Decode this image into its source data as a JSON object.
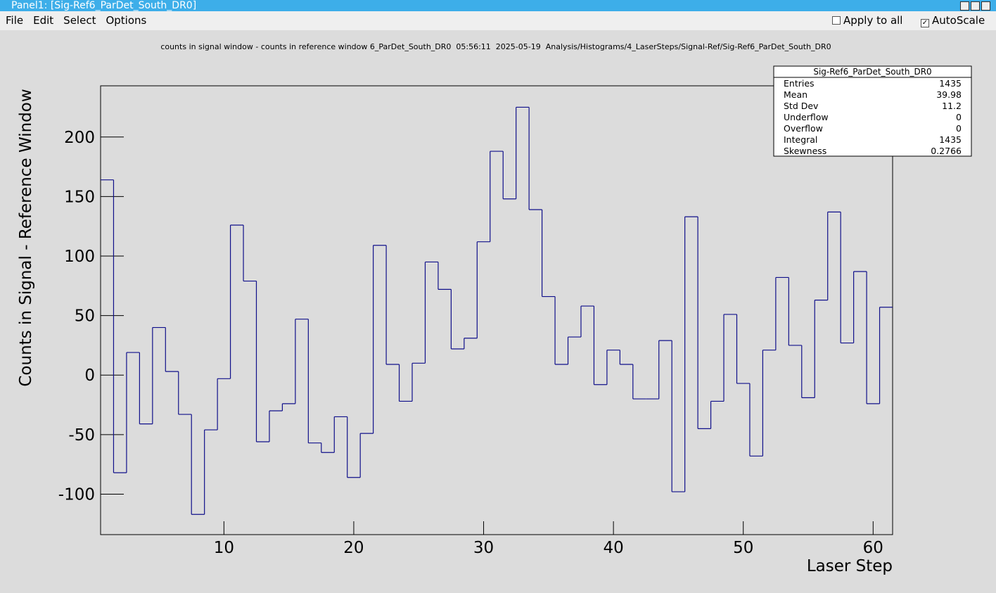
{
  "window": {
    "title": "Panel1: [Sig-Ref6_ParDet_South_DR0]"
  },
  "menu": [
    "File",
    "Edit",
    "Select",
    "Options"
  ],
  "options": [
    {
      "label": "Apply to all",
      "checked": false
    },
    {
      "label": "AutoScale",
      "checked": true
    }
  ],
  "stats": {
    "title": "Sig-Ref6_ParDet_South_DR0",
    "rows": [
      [
        "Entries",
        1435
      ],
      [
        "Mean",
        39.98
      ],
      [
        "Std Dev",
        11.2
      ],
      [
        "Underflow",
        0
      ],
      [
        "Overflow",
        0
      ],
      [
        "Integral",
        1435
      ],
      [
        "Skewness",
        0.2766
      ]
    ]
  },
  "chart_data": {
    "type": "histogram",
    "title": "counts in signal window - counts in reference window 6_ParDet_South_DR0  05:56:11  2025-05-19  Analysis/Histograms/4_LaserSteps/Signal-Ref/Sig-Ref6_ParDet_South_DR0",
    "x_label": "Laser Step",
    "y_label": "Counts in Signal - Reference Window",
    "color": "#10108a",
    "bins": [
      0.5,
      1.5,
      2.5,
      3.5,
      4.5,
      5.5,
      6.5,
      7.5,
      8.5,
      9.5,
      10.5,
      11.5,
      12.5,
      13.5,
      14.5,
      15.5,
      16.5,
      17.5,
      18.5,
      19.5,
      20.5,
      21.5,
      22.5,
      23.5,
      24.5,
      25.5,
      26.5,
      27.5,
      28.5,
      29.5,
      30.5,
      31.5,
      32.5,
      33.5,
      34.5,
      35.5,
      36.5,
      37.5,
      38.5,
      39.5,
      40.5,
      41.5,
      42.5,
      43.5,
      44.5,
      45.5,
      46.5,
      47.5,
      48.5,
      49.5,
      50.5,
      51.5,
      52.5,
      53.5,
      54.5,
      55.5,
      56.5,
      57.5,
      58.5,
      59.5,
      60.5,
      61.5
    ],
    "values": [
      164,
      -82,
      19,
      -41,
      40,
      3,
      -33,
      -117,
      -46,
      -3,
      126,
      79,
      -56,
      -30,
      -24,
      47,
      -57,
      -65,
      -35,
      -86,
      -49,
      109,
      9,
      -22,
      10,
      95,
      72,
      22,
      31,
      112,
      188,
      148,
      225,
      139,
      66,
      9,
      32,
      58,
      -8,
      21,
      9,
      -20,
      -20,
      29,
      -98,
      133,
      -45,
      -22,
      51,
      -7,
      -68,
      21,
      82,
      25,
      -19,
      63,
      137,
      27,
      87,
      -24,
      57
    ],
    "xlim": [
      0.5,
      61.5
    ],
    "ylim": [
      -134,
      243
    ],
    "xticks": [
      10,
      20,
      30,
      40,
      50,
      60
    ],
    "yticks": [
      -100,
      -50,
      0,
      50,
      100,
      150,
      200
    ]
  }
}
